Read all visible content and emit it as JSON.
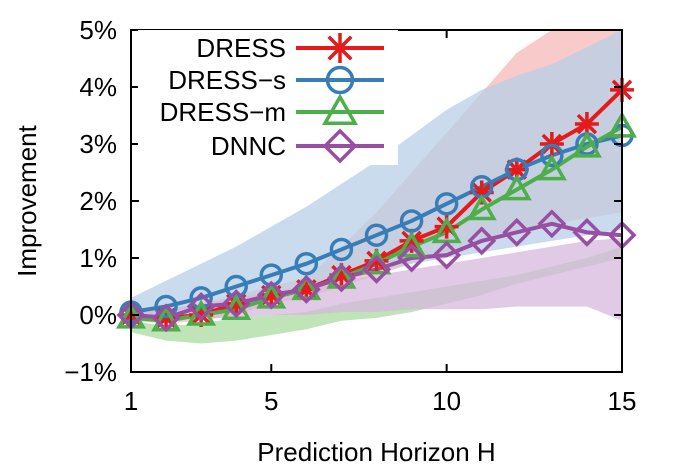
{
  "chart_data": {
    "type": "line",
    "title": "",
    "xlabel": "Prediction Horizon H",
    "ylabel": "Improvement",
    "xlim": [
      1,
      15
    ],
    "ylim": [
      -1,
      5
    ],
    "x_ticks": [
      "1",
      "5",
      "10",
      "15"
    ],
    "y_ticks": [
      "−1%",
      "0%",
      "1%",
      "2%",
      "3%",
      "4%",
      "5%"
    ],
    "x": [
      1,
      2,
      3,
      4,
      5,
      6,
      7,
      8,
      9,
      10,
      11,
      12,
      13,
      14,
      15
    ],
    "legend_position": "top-left",
    "grid": false,
    "series": [
      {
        "name": "DRESS",
        "color": "#e41a1c",
        "marker": "asterisk",
        "values": [
          0.0,
          -0.05,
          0.0,
          0.2,
          0.35,
          0.45,
          0.7,
          0.95,
          1.3,
          1.55,
          2.15,
          2.55,
          3.0,
          3.35,
          3.95
        ],
        "band_lower": [
          -0.1,
          -0.15,
          -0.1,
          0.0,
          0.2,
          0.3,
          0.5,
          0.7,
          0.9,
          1.1,
          1.3,
          1.5,
          1.6,
          1.7,
          1.8
        ],
        "band_upper": [
          0.1,
          0.1,
          0.2,
          0.35,
          0.5,
          0.65,
          1.2,
          1.8,
          2.5,
          3.2,
          3.9,
          4.6,
          5.0,
          5.0,
          5.0
        ]
      },
      {
        "name": "DRESS−s",
        "color": "#377eb8",
        "marker": "circle",
        "values": [
          0.05,
          0.15,
          0.3,
          0.5,
          0.7,
          0.9,
          1.15,
          1.4,
          1.65,
          1.95,
          2.25,
          2.55,
          2.8,
          3.0,
          3.15
        ],
        "band_lower": [
          -0.05,
          0.05,
          0.15,
          0.25,
          0.35,
          0.45,
          0.6,
          0.75,
          0.9,
          1.0,
          1.1,
          1.2,
          1.3,
          1.4,
          1.5
        ],
        "band_upper": [
          0.3,
          0.6,
          0.9,
          1.2,
          1.55,
          1.9,
          2.3,
          2.7,
          3.15,
          3.6,
          3.95,
          4.2,
          4.4,
          4.7,
          5.0
        ]
      },
      {
        "name": "DRESS−m",
        "color": "#4daf4a",
        "marker": "triangle",
        "values": [
          -0.05,
          -0.1,
          0.0,
          0.1,
          0.3,
          0.45,
          0.65,
          0.9,
          1.2,
          1.45,
          1.85,
          2.2,
          2.55,
          2.95,
          3.3
        ],
        "band_lower": [
          -0.3,
          -0.45,
          -0.5,
          -0.45,
          -0.35,
          -0.25,
          -0.1,
          -0.05,
          0.05,
          0.2,
          0.35,
          0.55,
          0.7,
          0.85,
          1.0
        ],
        "band_upper": [
          -0.1,
          -0.2,
          -0.15,
          -0.05,
          0.0,
          0.05,
          0.2,
          0.3,
          0.4,
          0.5,
          0.6,
          0.7,
          0.85,
          1.0,
          1.2
        ]
      },
      {
        "name": "DNNC",
        "color": "#984ea3",
        "marker": "diamond",
        "values": [
          0.0,
          -0.05,
          0.15,
          0.2,
          0.35,
          0.45,
          0.65,
          0.8,
          1.0,
          1.05,
          1.3,
          1.45,
          1.6,
          1.45,
          1.4
        ],
        "band_lower": [
          -0.1,
          -0.1,
          -0.05,
          -0.05,
          0.0,
          0.0,
          0.05,
          0.05,
          0.1,
          0.1,
          0.1,
          0.15,
          0.15,
          0.15,
          -0.1
        ],
        "band_upper": [
          0.1,
          0.1,
          0.2,
          0.3,
          0.4,
          0.5,
          0.6,
          0.7,
          0.8,
          0.9,
          1.0,
          1.1,
          1.2,
          1.3,
          1.35
        ]
      }
    ]
  }
}
